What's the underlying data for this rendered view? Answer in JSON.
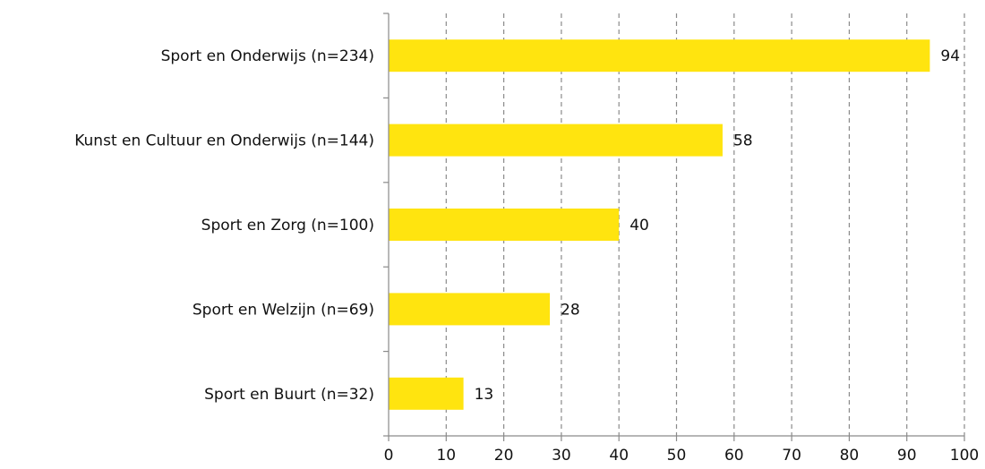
{
  "chart_data": {
    "type": "bar",
    "orientation": "horizontal",
    "categories": [
      "Sport en Onderwijs (n=234)",
      "Kunst en Cultuur en Onderwijs (n=144)",
      "Sport en Zorg (n=100)",
      "Sport en Welzijn (n=69)",
      "Sport en Buurt (n=32)"
    ],
    "values": [
      94,
      58,
      40,
      28,
      13
    ],
    "data_labels": [
      "94",
      "58",
      "40",
      "28",
      "13"
    ],
    "xlim": [
      0,
      100
    ],
    "x_ticks": [
      "0",
      "10",
      "20",
      "30",
      "40",
      "50",
      "60",
      "70",
      "80",
      "90",
      "100"
    ],
    "grid": "vertical-dashed",
    "bar_color": "#FFE40F",
    "legend": "none"
  }
}
